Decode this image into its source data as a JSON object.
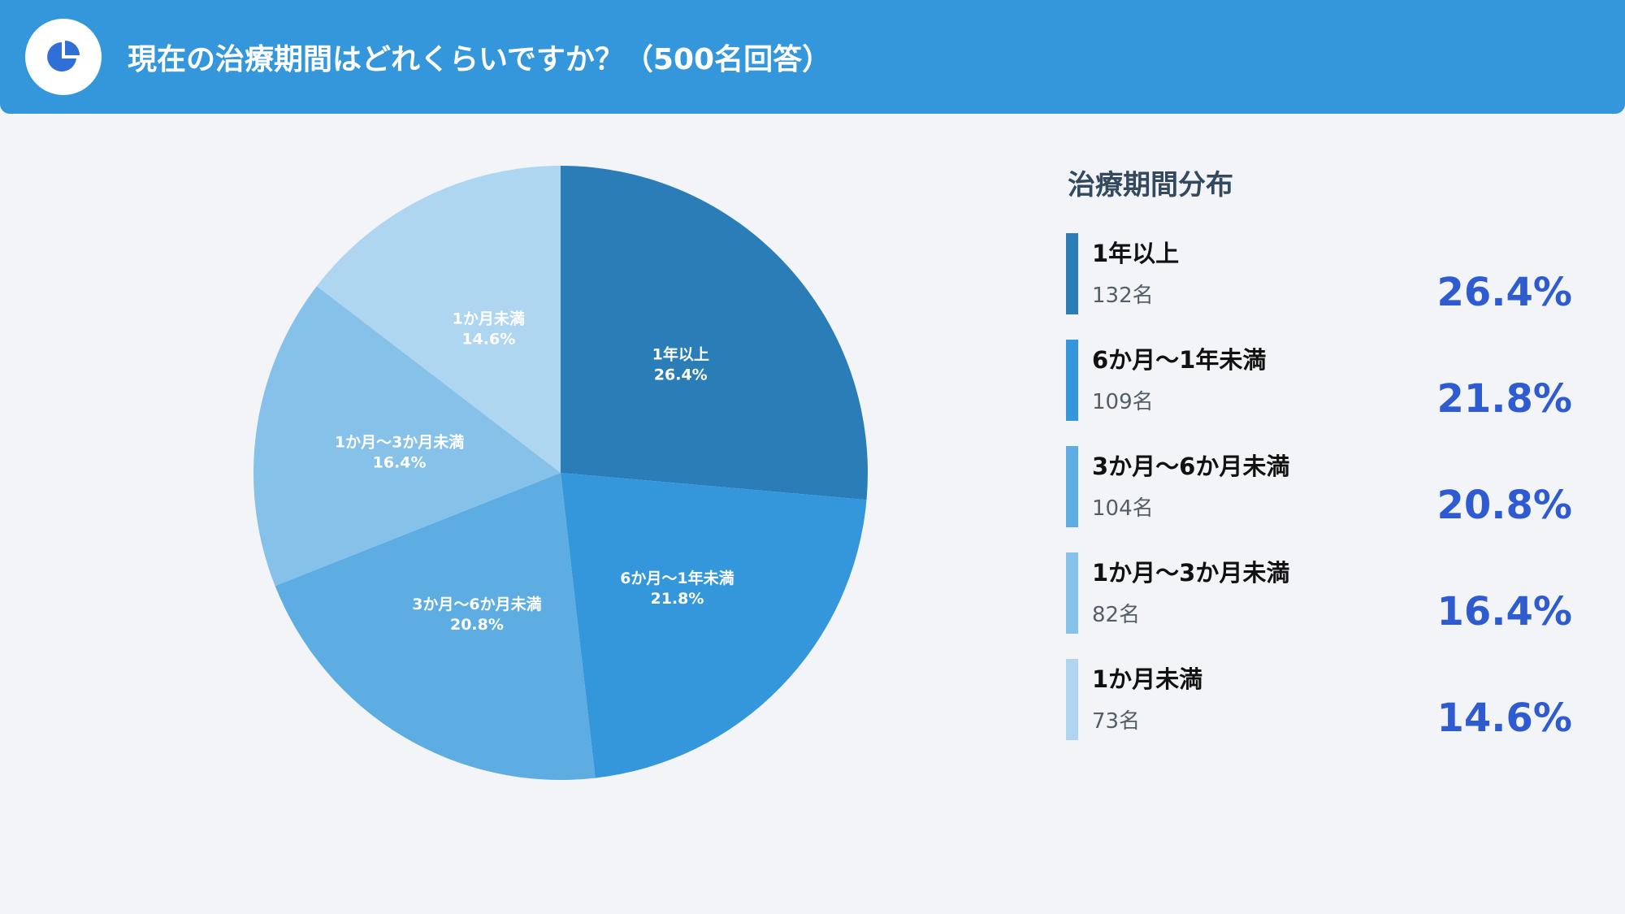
{
  "header": {
    "title": "現在の治療期間はどれくらいですか？（500名回答）",
    "icon": "pie-chart-icon"
  },
  "legend": {
    "title": "治療期間分布"
  },
  "chart_data": {
    "type": "pie",
    "title": "現在の治療期間はどれくらいですか？（500名回答）",
    "total": 500,
    "slices": [
      {
        "label": "1年以上",
        "count": "132名",
        "value": 26.4,
        "pct": "26.4%",
        "color": "#2a7db6"
      },
      {
        "label": "6か月〜1年未満",
        "count": "109名",
        "value": 21.8,
        "pct": "21.8%",
        "color": "#3497db"
      },
      {
        "label": "3か月〜6か月未満",
        "count": "104名",
        "value": 20.8,
        "pct": "20.8%",
        "color": "#5dade2"
      },
      {
        "label": "1か月〜3か月未満",
        "count": "82名",
        "value": 16.4,
        "pct": "16.4%",
        "color": "#85c1e9"
      },
      {
        "label": "1か月未満",
        "count": "73名",
        "value": 14.6,
        "pct": "14.6%",
        "color": "#aed6f1"
      }
    ],
    "start_angle": "12 o'clock",
    "direction": "clockwise",
    "legend_position": "right"
  }
}
